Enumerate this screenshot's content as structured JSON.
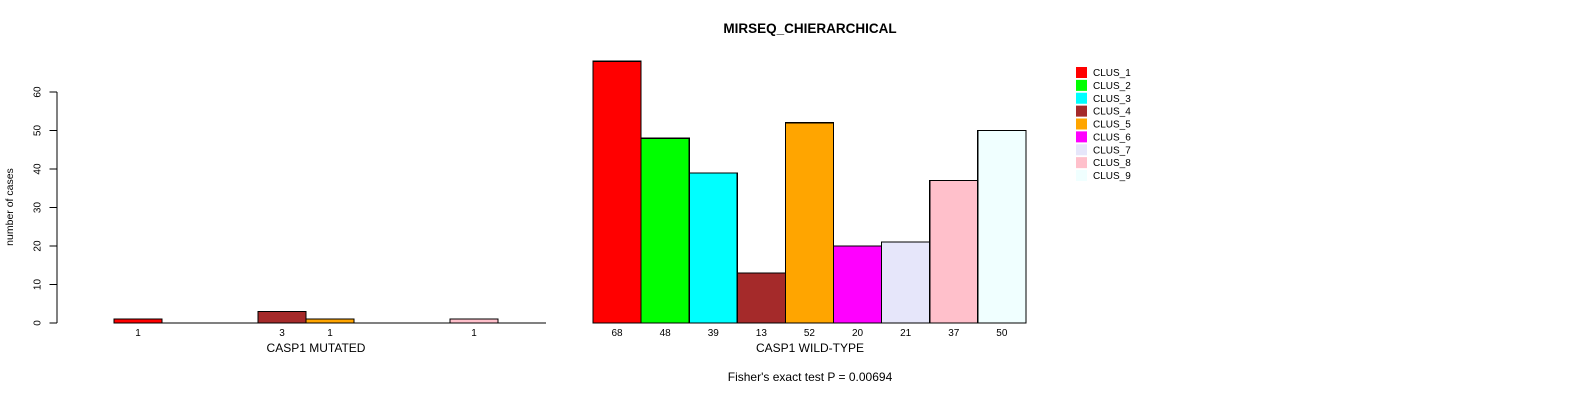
{
  "chart_data": {
    "type": "bar",
    "title": "MIRSEQ_CHIERARCHICAL",
    "ylabel": "number of cases",
    "ylim": [
      0,
      60
    ],
    "yticks": [
      0,
      10,
      20,
      30,
      40,
      50,
      60
    ],
    "grid": false,
    "legend_position": "right",
    "clusters": [
      {
        "label": "CLUS_1",
        "color": "#FF0000"
      },
      {
        "label": "CLUS_2",
        "color": "#00FF00"
      },
      {
        "label": "CLUS_3",
        "color": "#00FFFF"
      },
      {
        "label": "CLUS_4",
        "color": "#A52A2A"
      },
      {
        "label": "CLUS_5",
        "color": "#FFA500"
      },
      {
        "label": "CLUS_6",
        "color": "#FF00FF"
      },
      {
        "label": "CLUS_7",
        "color": "#E6E6FA"
      },
      {
        "label": "CLUS_8",
        "color": "#FFC0CB"
      },
      {
        "label": "CLUS_9",
        "color": "#F0FFFF"
      }
    ],
    "panels": [
      {
        "xlabel": "CASP1 MUTATED",
        "values": [
          1,
          0,
          0,
          3,
          1,
          0,
          0,
          1,
          0
        ],
        "bar_labels": [
          "1",
          "",
          "",
          "3",
          "1",
          "",
          "",
          "1",
          ""
        ]
      },
      {
        "xlabel": "CASP1 WILD-TYPE",
        "values": [
          68,
          48,
          39,
          13,
          52,
          20,
          21,
          37,
          50
        ],
        "bar_labels": [
          "68",
          "48",
          "39",
          "13",
          "52",
          "20",
          "21",
          "37",
          "50"
        ]
      }
    ],
    "annotation": "Fisher's exact test P = 0.00694"
  },
  "colors": {
    "background": "#FFFFFF",
    "axis": "#000000",
    "text": "#000000",
    "bar_border": "#000000"
  }
}
